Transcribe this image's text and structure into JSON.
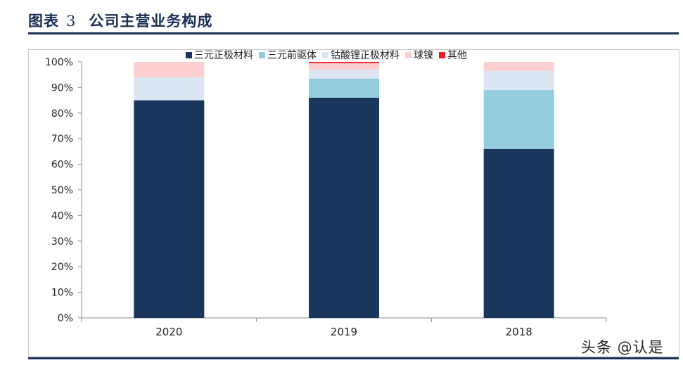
{
  "figure": {
    "title_prefix": "图表",
    "title_number": "3",
    "title": "公司主营业务构成"
  },
  "watermark": "头条 @认是",
  "chart_data": {
    "type": "bar",
    "stacked": true,
    "categories": [
      "2020",
      "2019",
      "2018"
    ],
    "series": [
      {
        "name": "三元正极材料",
        "color": "#1a365d",
        "values": [
          85,
          86,
          66
        ]
      },
      {
        "name": "三元前驱体",
        "color": "#93cddd",
        "values": [
          0,
          7.5,
          23
        ]
      },
      {
        "name": "钴酸锂正极材料",
        "color": "#dce6f2",
        "values": [
          9,
          3.5,
          7.5
        ]
      },
      {
        "name": "球镍",
        "color": "#fbcfd0",
        "values": [
          6,
          2.5,
          3.5
        ]
      },
      {
        "name": "其他",
        "color": "#ee1c25",
        "values": [
          0,
          0.5,
          0
        ]
      }
    ],
    "ylim": [
      0,
      100
    ],
    "yticks": [
      "0%",
      "10%",
      "20%",
      "30%",
      "40%",
      "50%",
      "60%",
      "70%",
      "80%",
      "90%",
      "100%"
    ],
    "legend_position": "top",
    "grid": false
  }
}
